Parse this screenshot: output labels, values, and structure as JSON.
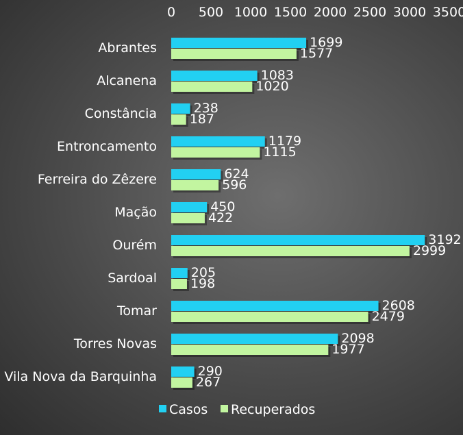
{
  "chart_data": {
    "type": "bar",
    "orientation": "horizontal",
    "categories": [
      "Abrantes",
      "Alcanena",
      "Constância",
      "Entroncamento",
      "Ferreira do Zêzere",
      "Mação",
      "Ourém",
      "Sardoal",
      "Tomar",
      "Torres Novas",
      "Vila Nova da Barquinha"
    ],
    "series": [
      {
        "name": "Casos",
        "color": "#22d0f2",
        "values": [
          1699,
          1083,
          238,
          1179,
          624,
          450,
          3192,
          205,
          2608,
          2098,
          290
        ]
      },
      {
        "name": "Recuperados",
        "color": "#c2f5a0",
        "values": [
          1577,
          1020,
          187,
          1115,
          596,
          422,
          2999,
          198,
          2479,
          1977,
          267
        ]
      }
    ],
    "xlim": [
      0,
      3500
    ],
    "xticks": [
      "0",
      "500",
      "1000",
      "1500",
      "2000",
      "2500",
      "3000",
      "3500"
    ],
    "axis_position": "top",
    "legend_position": "bottom",
    "grid": false,
    "data_labels": true
  }
}
